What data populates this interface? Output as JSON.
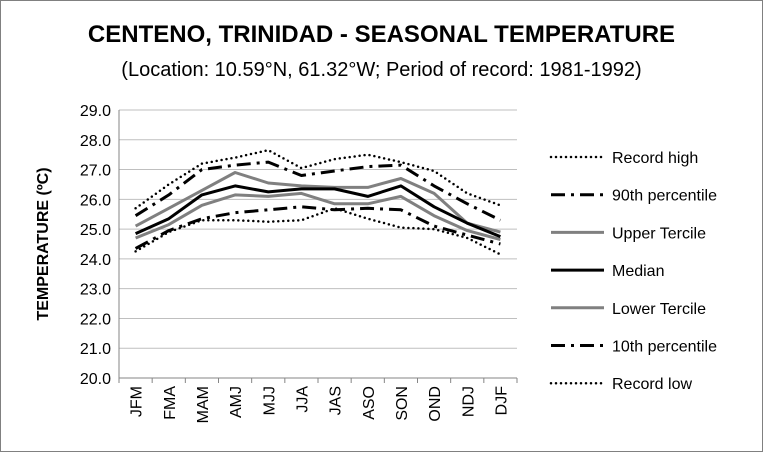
{
  "chart_data": {
    "type": "line",
    "title": "CENTENO, TRINIDAD - SEASONAL TEMPERATURE",
    "subtitle": "(Location: 10.59°N, 61.32°W; Period of record: 1981-1992)",
    "ylabel": "TEMPERATURE (ºC)",
    "xlabel": "",
    "ylim": [
      20.0,
      29.0
    ],
    "yticks": [
      "20.0",
      "21.0",
      "22.0",
      "23.0",
      "24.0",
      "25.0",
      "26.0",
      "27.0",
      "28.0",
      "29.0"
    ],
    "categories": [
      "JFM",
      "FMA",
      "MAM",
      "AMJ",
      "MJJ",
      "JJA",
      "JAS",
      "ASO",
      "SON",
      "OND",
      "NDJ",
      "DJF"
    ],
    "grid": "horizontal",
    "legend": "right",
    "series": [
      {
        "name": "Record high",
        "color": "#000000",
        "style": "dotted",
        "values": [
          25.7,
          26.5,
          27.2,
          27.4,
          27.65,
          27.05,
          27.35,
          27.5,
          27.25,
          26.95,
          26.2,
          25.8
        ]
      },
      {
        "name": "90th percentile",
        "color": "#000000",
        "style": "dashdot",
        "values": [
          25.45,
          26.15,
          27.0,
          27.15,
          27.25,
          26.8,
          26.95,
          27.1,
          27.15,
          26.45,
          25.85,
          25.3
        ]
      },
      {
        "name": "Upper Tercile",
        "color": "#808080",
        "style": "solid",
        "values": [
          25.1,
          25.7,
          26.3,
          26.9,
          26.55,
          26.45,
          26.4,
          26.4,
          26.7,
          26.2,
          25.2,
          24.9
        ]
      },
      {
        "name": "Median",
        "color": "#000000",
        "style": "solid",
        "values": [
          24.85,
          25.35,
          26.15,
          26.45,
          26.25,
          26.35,
          26.35,
          26.1,
          26.45,
          25.75,
          25.2,
          24.75
        ]
      },
      {
        "name": "Lower Tercile",
        "color": "#808080",
        "style": "solid",
        "values": [
          24.7,
          25.15,
          25.8,
          26.15,
          26.1,
          26.2,
          25.85,
          25.85,
          26.1,
          25.45,
          24.95,
          24.65
        ]
      },
      {
        "name": "10th percentile",
        "color": "#000000",
        "style": "dashdot",
        "values": [
          24.35,
          24.95,
          25.35,
          25.55,
          25.65,
          25.75,
          25.65,
          25.7,
          25.65,
          25.1,
          24.8,
          24.5
        ]
      },
      {
        "name": "Record low",
        "color": "#000000",
        "style": "dotted",
        "values": [
          24.25,
          24.9,
          25.3,
          25.3,
          25.25,
          25.3,
          25.7,
          25.35,
          25.05,
          25.0,
          24.7,
          24.15
        ]
      }
    ]
  }
}
